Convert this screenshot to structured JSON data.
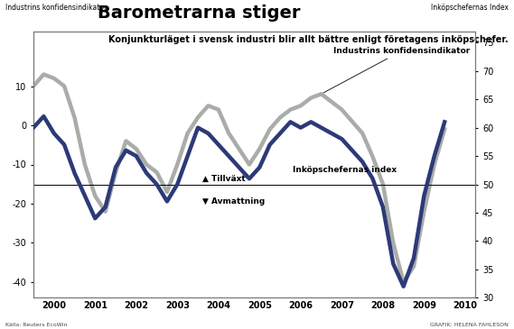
{
  "chart_data": {
    "type": "line",
    "title": "Barometrarna stiger",
    "subtitle": "Konjunkturläget i svensk industri blir allt bättre enligt företagens inköpschefer.",
    "y_label": "Industrins konfidensindikator",
    "y2_label": "Inköpschefernas Index",
    "source": "Källa: Reuters EcoWin",
    "credit": "GRAFIK: HELENA FAHLESON",
    "annotations": [
      {
        "text": "Industrins konfidensindikator",
        "x": 2007.3,
        "y": 19,
        "axis": "y",
        "target_x": 2007.0,
        "target_y": 8
      },
      {
        "text": "Inköpschefernas index",
        "x": 2006.3,
        "y": 52.5,
        "axis": "y2"
      },
      {
        "text": "▲ Tillväxt",
        "x": 2004.1,
        "y": 51,
        "axis": "y2"
      },
      {
        "text": "▼ Avmattning",
        "x": 2004.1,
        "y": 47,
        "axis": "y2"
      }
    ],
    "reference_line": 50,
    "x": [
      2000.0,
      2000.25,
      2000.5,
      2000.75,
      2001.0,
      2001.25,
      2001.5,
      2001.75,
      2002.0,
      2002.25,
      2002.5,
      2002.75,
      2003.0,
      2003.25,
      2003.5,
      2003.75,
      2004.0,
      2004.25,
      2004.5,
      2004.75,
      2005.0,
      2005.25,
      2005.5,
      2005.75,
      2006.0,
      2006.25,
      2006.5,
      2006.75,
      2007.0,
      2007.25,
      2007.5,
      2007.75,
      2008.0,
      2008.25,
      2008.5,
      2008.75,
      2009.0,
      2009.25,
      2009.5,
      2009.75,
      2010.0
    ],
    "series": [
      {
        "name": "Industrins konfidensindikator",
        "color": "#a9ada9",
        "axis": "y",
        "values": [
          10,
          13,
          12,
          10,
          2,
          -10,
          -18,
          -22,
          -12,
          -4,
          -6,
          -10,
          -12,
          -17,
          -10,
          -2,
          2,
          5,
          4,
          -2,
          -6,
          -10,
          -6,
          -1,
          2,
          4,
          5,
          7,
          8,
          6,
          4,
          1,
          -2,
          -8,
          -15,
          -30,
          -40,
          -36,
          -22,
          -10,
          -1
        ]
      },
      {
        "name": "Inköpschefernas index",
        "color": "#2c3a78",
        "axis": "y2",
        "values": [
          60,
          62,
          59,
          57,
          52,
          48,
          44,
          46,
          53,
          56,
          55,
          52,
          50,
          47,
          50,
          55,
          60,
          59,
          57,
          55,
          53,
          51,
          53,
          57,
          59,
          61,
          60,
          61,
          60,
          59,
          58,
          56,
          54,
          51,
          46,
          36,
          32,
          37,
          48,
          55,
          61
        ]
      }
    ],
    "xlim": [
      2000,
      2010.75
    ],
    "xticks": [
      {
        "value": 2000.5,
        "label": "2000"
      },
      {
        "value": 2001.5,
        "label": "2001"
      },
      {
        "value": 2002.5,
        "label": "2002"
      },
      {
        "value": 2003.5,
        "label": "2003"
      },
      {
        "value": 2004.5,
        "label": "2004"
      },
      {
        "value": 2005.5,
        "label": "2005"
      },
      {
        "value": 2006.5,
        "label": "2006"
      },
      {
        "value": 2007.5,
        "label": "2007"
      },
      {
        "value": 2008.5,
        "label": "2008"
      },
      {
        "value": 2009.5,
        "label": "2009"
      },
      {
        "value": 2010.5,
        "label": "2010"
      }
    ],
    "ylim": [
      -44,
      24
    ],
    "yticks": [
      10,
      0,
      -10,
      -20,
      -30,
      -40
    ],
    "y2lim": [
      30,
      77
    ],
    "y2ticks": [
      75,
      70,
      65,
      60,
      55,
      50,
      45,
      40,
      35,
      30
    ],
    "grid": false
  }
}
